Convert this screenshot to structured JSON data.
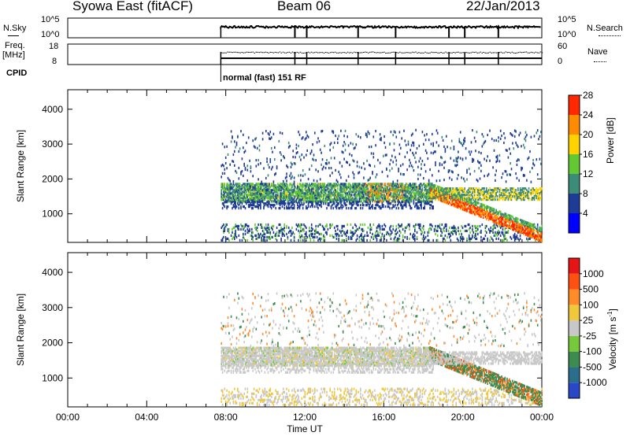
{
  "header": {
    "title": "Syowa East (fitACF)",
    "beam": "Beam 06",
    "date": "22/Jan/2013"
  },
  "top_panels": {
    "nsky_label": "N.Sky",
    "nsearch_label": "N.Search",
    "nsky_ticks": [
      "10^5",
      "10^0"
    ],
    "nsearch_ticks": [
      "10^5",
      "10^0"
    ],
    "freq_label_1": "Freq.",
    "freq_label_2": "[MHz]",
    "freq_ticks": [
      "18",
      "8"
    ],
    "nave_label": "Nave",
    "nave_ticks": [
      "60",
      "0"
    ],
    "cpid_label": "CPID",
    "cpid_text": "normal (fast) 151 RF"
  },
  "chart_data": [
    {
      "type": "heatmap",
      "name": "power",
      "ylabel": "Slant Range [km]",
      "ylim": [
        180,
        4560
      ],
      "yticks": [
        1000,
        2000,
        3000,
        4000
      ],
      "xlim": [
        0,
        24
      ],
      "xticks": [
        "00:00",
        "04:00",
        "08:00",
        "12:00",
        "16:00",
        "20:00",
        "00:00"
      ],
      "colorbar_label": "Power [dB]",
      "colorbar_ticks": [
        "4",
        "8",
        "12",
        "16",
        "20",
        "24",
        "28"
      ],
      "colors": [
        "#0000ff",
        "#1e3c96",
        "#3c8c78",
        "#64c832",
        "#ffd200",
        "#ff8c00",
        "#ff2800"
      ],
      "data_start_time": 7.75
    },
    {
      "type": "heatmap",
      "name": "velocity",
      "ylabel": "Slant Range [km]",
      "ylim": [
        180,
        4560
      ],
      "yticks": [
        1000,
        2000,
        3000,
        4000
      ],
      "xlim": [
        0,
        24
      ],
      "xticks": [
        "00:00",
        "04:00",
        "08:00",
        "12:00",
        "16:00",
        "20:00",
        "00:00"
      ],
      "xlabel": "Time UT",
      "colorbar_label": "Velocity [m s",
      "colorbar_sup": "-1",
      "colorbar_ticks": [
        "1000",
        "500",
        "100",
        "25",
        "-25",
        "-100",
        "-500",
        "-1000"
      ],
      "colors": [
        "#2848c8",
        "#2a6e8c",
        "#3c8c50",
        "#78c83c",
        "#c8c8c8",
        "#f0c83c",
        "#ff8c28",
        "#ff5014",
        "#e61414"
      ],
      "data_start_time": 7.75
    }
  ]
}
